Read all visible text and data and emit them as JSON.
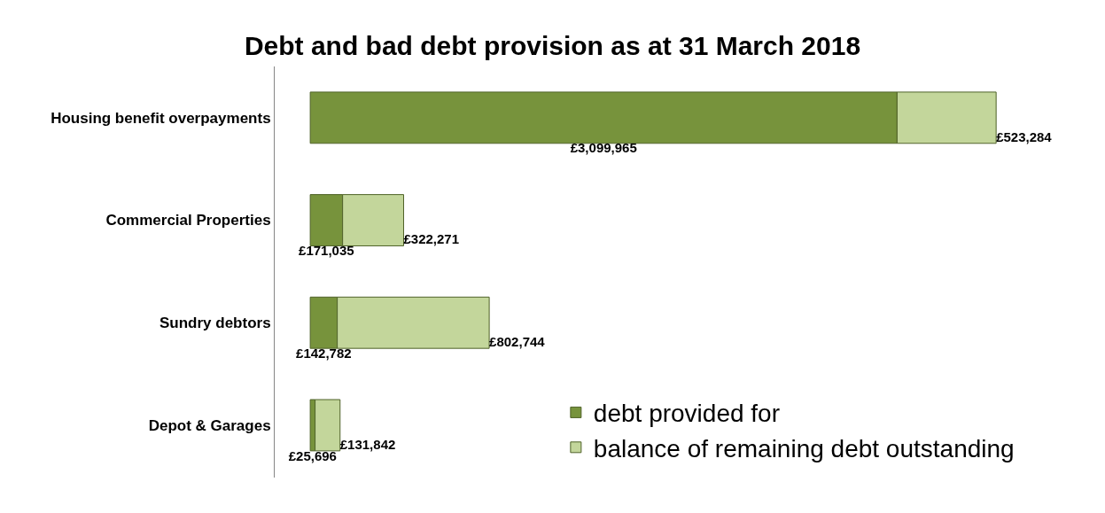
{
  "chart_data": {
    "type": "bar",
    "orientation": "horizontal",
    "stacked": true,
    "title": "Debt and bad debt provision as at 31 March 2018",
    "categories": [
      "Housing benefit overpayments",
      "Commercial Properties",
      "Sundry debtors",
      "Depot & Garages"
    ],
    "series": [
      {
        "name": "debt provided for",
        "color": "#77933c",
        "values": [
          3099965,
          171035,
          142782,
          25696
        ],
        "value_labels": [
          "£3,099,965",
          "£171,035",
          "£142,782",
          "£25,696"
        ]
      },
      {
        "name": "balance of remaining debt outstanding",
        "color": "#c3d69b",
        "values": [
          523284,
          322271,
          802744,
          131842
        ],
        "value_labels": [
          "£523,284",
          "£322,271",
          "£802,744",
          "£131,842"
        ]
      }
    ],
    "legend": "bottom right"
  }
}
